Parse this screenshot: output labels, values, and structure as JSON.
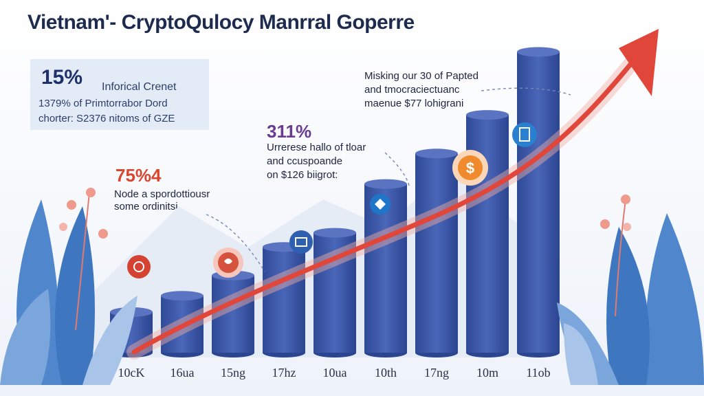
{
  "title": "Vietnam'- CryptoQulocy Manrral Goperre",
  "panel": {
    "stat": "15%",
    "label": "Inforical Crenet",
    "line1": "1379% of Primtorrabor Dord",
    "line2": "chorter: S2376 nitoms of GZE"
  },
  "annotation_left": {
    "stat": "75%4",
    "stat_color": "#d9462e",
    "line1": "Node a spordottiousr",
    "line2": "some ordinitsj"
  },
  "annotation_middle": {
    "stat": "311%",
    "stat_color": "#6b3b8f",
    "line1": "Urrerese hallo of tloar",
    "line2": "and ccuspoande",
    "line3": "on $126 biigrot:"
  },
  "annotation_top": {
    "line1": "Misking our 30 of Papted",
    "line2": "and tmocraciectuanc",
    "line3": "maenue $77 lohigrani"
  },
  "icons": [
    "gear-badge-icon",
    "heart-badge-icon",
    "gift-badge-icon",
    "diamond-badge-icon",
    "dollar-coin-icon",
    "document-badge-icon"
  ],
  "colors": {
    "bar": "#3f5aa6",
    "bar_top": "#5a74c2",
    "arrow": "#e0463a",
    "leaf": "#5b8fd0",
    "blossom": "#f09a8e"
  },
  "chart_data": {
    "type": "bar",
    "categories": [
      "10cK",
      "16ua",
      "15ng",
      "17hz",
      "10ua",
      "10th",
      "17ng",
      "10m",
      "11ob"
    ],
    "values": [
      1.0,
      1.4,
      1.9,
      2.6,
      2.95,
      4.15,
      4.9,
      5.85,
      7.4
    ],
    "ylim": [
      0,
      8
    ],
    "trend": "rising arrow",
    "grid": false
  }
}
